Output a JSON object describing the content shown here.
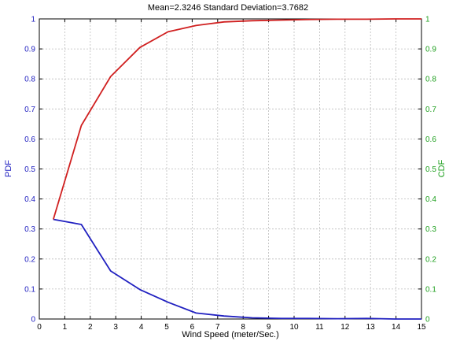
{
  "chart_data": {
    "type": "line",
    "title": "Mean=2.3246  Standard Deviation=3.7682",
    "xlabel": "Wind Speed (meter/Sec.)",
    "ylabel_left": "PDF",
    "ylabel_right": "CDF",
    "xlim": [
      0,
      15
    ],
    "ylim_left": [
      0,
      1
    ],
    "ylim_right": [
      0,
      1
    ],
    "grid": true,
    "x_ticks": [
      "0",
      "1",
      "2",
      "3",
      "4",
      "5",
      "6",
      "7",
      "8",
      "9",
      "10",
      "11",
      "12",
      "13",
      "14",
      "15"
    ],
    "y_ticks_left": [
      "0",
      "0.1",
      "0.2",
      "0.3",
      "0.4",
      "0.5",
      "0.6",
      "0.7",
      "0.8",
      "0.9",
      "1"
    ],
    "y_ticks_right": [
      "0",
      "0.1",
      "0.2",
      "0.3",
      "0.4",
      "0.5",
      "0.6",
      "0.7",
      "0.8",
      "0.9",
      "1"
    ],
    "series": [
      {
        "axis": "left",
        "color": "#2020c0",
        "x": [
          0.55,
          1.65,
          2.8,
          3.95,
          5.05,
          6.15,
          7.25,
          8.35,
          9.5,
          10.6,
          11.7,
          12.85,
          13.95,
          15.0
        ],
        "y": [
          0.332,
          0.315,
          0.16,
          0.098,
          0.056,
          0.02,
          0.01,
          0.004,
          0.002,
          0.002,
          0.001,
          0.002,
          0.0,
          0.0
        ]
      },
      {
        "axis": "right",
        "color": "#d02020",
        "x": [
          0.55,
          1.65,
          2.8,
          3.95,
          5.05,
          6.15,
          7.25,
          8.35,
          9.5,
          10.6,
          11.7,
          12.85,
          13.95,
          15.0
        ],
        "y": [
          0.332,
          0.645,
          0.808,
          0.905,
          0.957,
          0.978,
          0.99,
          0.994,
          0.996,
          0.998,
          0.999,
          0.999,
          1.0,
          1.0
        ]
      }
    ],
    "colors": {
      "left_axis": "#2020c0",
      "right_axis": "#20a020",
      "grid": "#bbbbbb"
    }
  }
}
